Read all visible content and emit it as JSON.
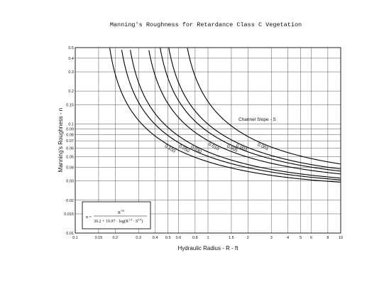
{
  "chart_data": {
    "type": "line",
    "title": "Manning's Roughness for Retardance Class C Vegetation",
    "xlabel": "Hydraulic Radius - R - ft",
    "ylabel": "Manning's Roughness - n",
    "x_scale": "log",
    "y_scale": "log",
    "xlim": [
      0.1,
      10
    ],
    "ylim": [
      0.01,
      0.5
    ],
    "grid": true,
    "x_ticks": [
      "0.1",
      "0.15",
      "0.2",
      "0.3",
      "0.4",
      "0.5",
      "0.6",
      "0.8",
      "1",
      "1.5",
      "2",
      "3",
      "4",
      "5",
      "6",
      "8",
      "10"
    ],
    "x_tick_values": [
      0.1,
      0.15,
      0.2,
      0.3,
      0.4,
      0.5,
      0.6,
      0.8,
      1,
      1.5,
      2,
      3,
      4,
      5,
      6,
      8,
      10
    ],
    "y_ticks": [
      "0.01",
      "0.015",
      "0.02",
      "0.03",
      "0.04",
      "0.05",
      "0.06",
      "0.07",
      "0.08",
      "0.09",
      "0.1",
      "0.15",
      "0.2",
      "0.3",
      "0.4",
      "0.5"
    ],
    "y_tick_values": [
      0.01,
      0.015,
      0.02,
      0.03,
      0.04,
      0.05,
      0.06,
      0.07,
      0.08,
      0.09,
      0.1,
      0.15,
      0.2,
      0.3,
      0.4,
      0.5
    ],
    "curve_group_label": "Channel Slope - S",
    "equation": {
      "lhs": "n =",
      "numerator": "R",
      "numerator_exp": "1/6",
      "denominator": "30.2 + 19.97 · log(R",
      "denominator_exp1": "1.4",
      "denominator_mid": " · S",
      "denominator_exp2": "0.4",
      "denominator_end": ")"
    },
    "series": [
      {
        "name": "0.001",
        "slope": 0.001
      },
      {
        "name": "0.003",
        "slope": 0.003
      },
      {
        "name": "0.005",
        "slope": 0.005
      },
      {
        "name": "0.010",
        "slope": 0.01
      },
      {
        "name": "0.030",
        "slope": 0.03
      },
      {
        "name": "0.050",
        "slope": 0.05
      },
      {
        "name": "0.100",
        "slope": 0.1
      }
    ]
  }
}
